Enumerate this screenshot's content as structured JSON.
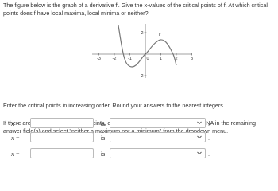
{
  "question": {
    "intro": "The figure below is the graph of a derivative f′. Give the x-values of the critical points of f. At which critical points does f have local maxima, local minima or neither?",
    "graph": {
      "x_tick_labels": [
        "-3",
        "-2",
        "-1",
        "0",
        "1",
        "2",
        "3"
      ],
      "y_tick_labels": [
        "2",
        "-2"
      ],
      "curve_label": "f′"
    },
    "instruction": "Enter the critical points in increasing order. Round your answers to the nearest integers.",
    "note": "If there are less than three critical points, enter the critical points first, then enter NA in the remaining answer field(s) and select \"neither a maximum nor a minimum\" from the dropdown menu."
  },
  "answers": [
    {
      "label": "x =",
      "connector": "is"
    },
    {
      "label": "x =",
      "connector": "is"
    },
    {
      "label": "x =",
      "connector": "is"
    }
  ]
}
